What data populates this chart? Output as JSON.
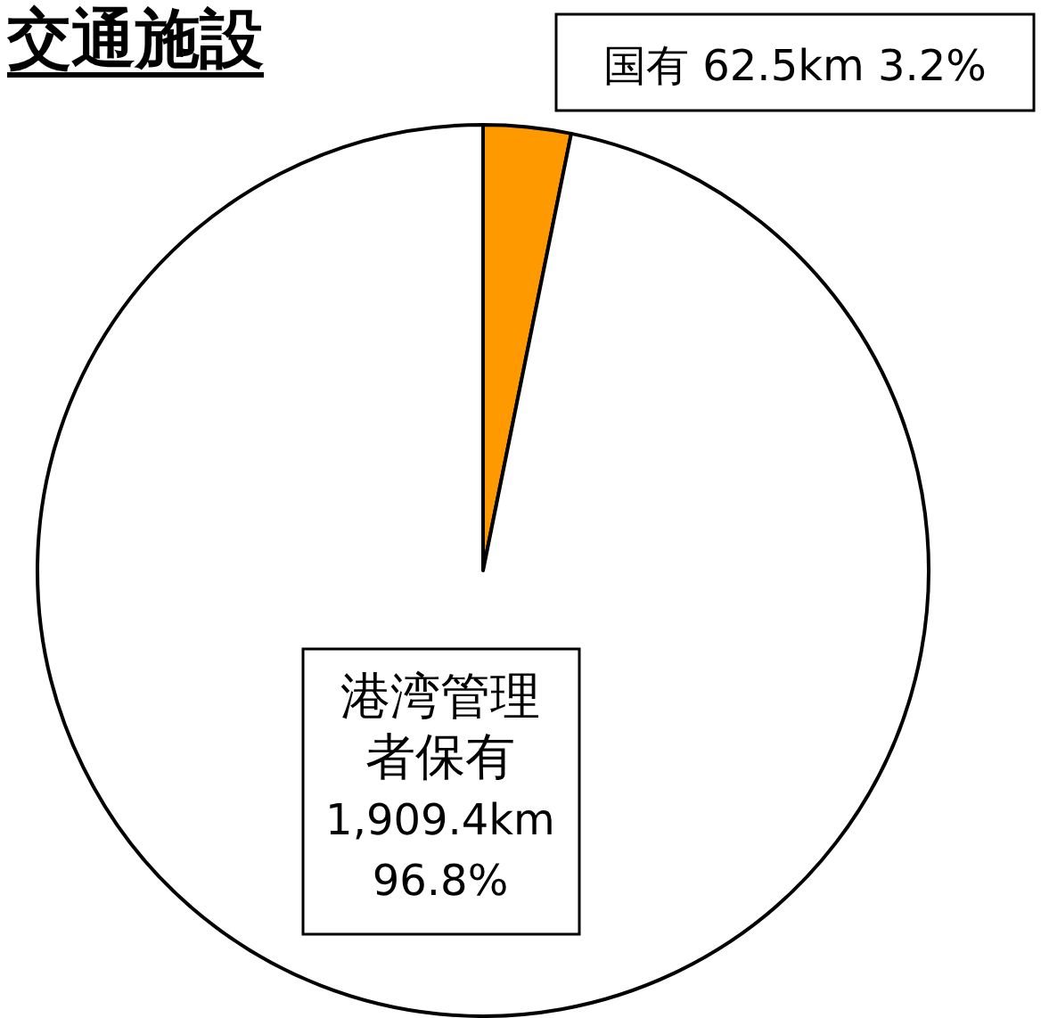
{
  "chart_data": {
    "type": "pie",
    "title": "交通施設",
    "categories": [
      "国有",
      "港湾管理者保有"
    ],
    "values": [
      62.5,
      1909.4
    ],
    "colors": [
      "#ff9900",
      "#ffffff"
    ],
    "value_labels": [
      "62.5km 3.2%",
      "1,909.4km 96.8%"
    ]
  }
}
